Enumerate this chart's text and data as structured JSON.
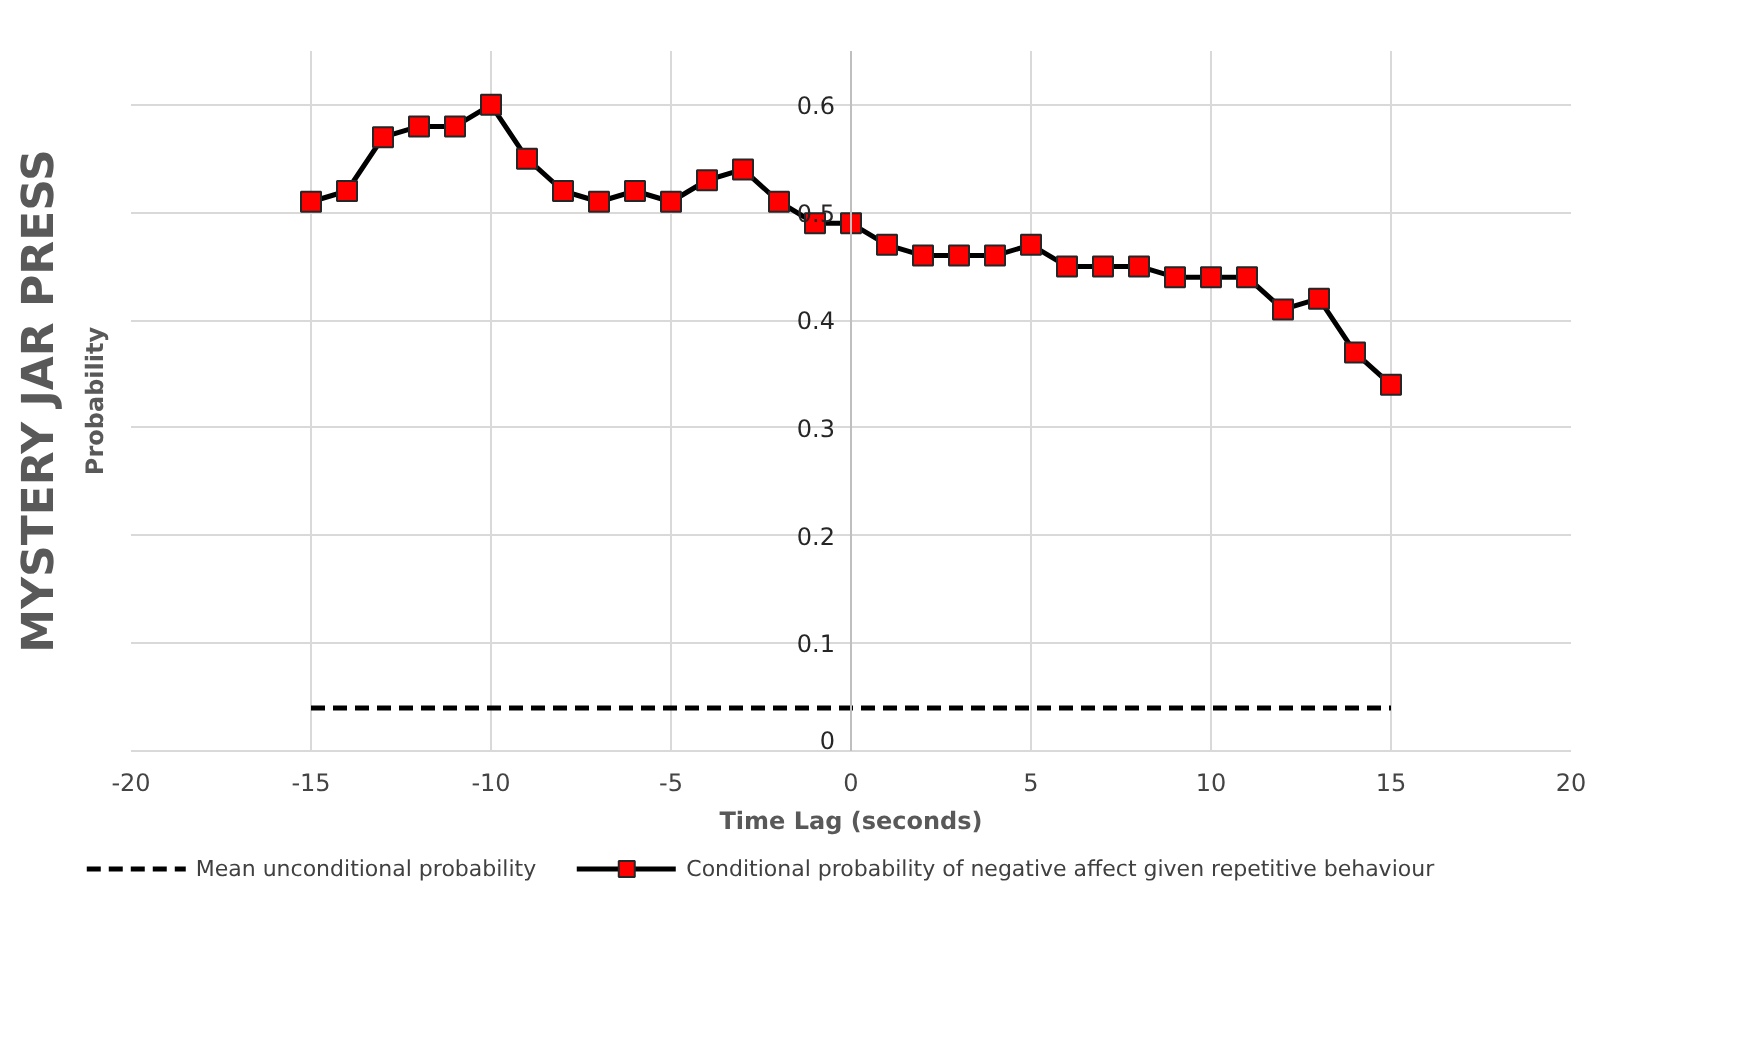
{
  "chart_data": {
    "type": "line",
    "title": "MYSTERY JAR PRESS",
    "xlabel": "Time Lag (seconds)",
    "ylabel": "Probability",
    "xlim": [
      -20,
      20
    ],
    "xticks": [
      -20,
      -15,
      -10,
      -5,
      0,
      5,
      10,
      15,
      20
    ],
    "ylim": [
      0,
      0.65
    ],
    "yticks": [
      0,
      0.1,
      0.2,
      0.3,
      0.4,
      0.5,
      0.6
    ],
    "grid": true,
    "legend": "bottom",
    "series": [
      {
        "name": "Mean unconditional probability",
        "line_style": "dashed",
        "marker": "none",
        "color": "#000000",
        "x": [
          -15,
          15
        ],
        "values": [
          0.04,
          0.04
        ]
      },
      {
        "name": "Conditional probability of negative affect given repetitive behaviour",
        "line_style": "solid",
        "marker": "square",
        "color": "#000000",
        "colors": [
          "#ff0000",
          "#ff0000",
          "#ff0000",
          "#ff0000",
          "#ff0000",
          "#ff0000",
          "#ff0000",
          "#ff0000",
          "#ff0000",
          "#ff0000",
          "#ff0000",
          "#ff0000",
          "#ff0000",
          "#ff0000",
          "#ff0000",
          "#ff0000",
          "#ff0000",
          "#ff0000",
          "#ff0000",
          "#ff0000",
          "#ff0000",
          "#ff0000",
          "#ff0000",
          "#ff0000",
          "#ff0000",
          "#ff0000",
          "#ff0000",
          "#ff0000",
          "#ff0000",
          "#ff0000",
          "#ff0000"
        ],
        "x": [
          -15,
          -14,
          -13,
          -12,
          -11,
          -10,
          -9,
          -8,
          -7,
          -6,
          -5,
          -4,
          -3,
          -2,
          -1,
          0,
          1,
          2,
          3,
          4,
          5,
          6,
          7,
          8,
          9,
          10,
          11,
          12,
          13,
          14,
          15
        ],
        "values": [
          0.51,
          0.52,
          0.57,
          0.58,
          0.58,
          0.6,
          0.55,
          0.52,
          0.51,
          0.52,
          0.51,
          0.53,
          0.54,
          0.51,
          0.49,
          0.49,
          0.47,
          0.46,
          0.46,
          0.46,
          0.47,
          0.45,
          0.45,
          0.45,
          0.44,
          0.44,
          0.44,
          0.41,
          0.42,
          0.37,
          0.34
        ]
      }
    ]
  }
}
